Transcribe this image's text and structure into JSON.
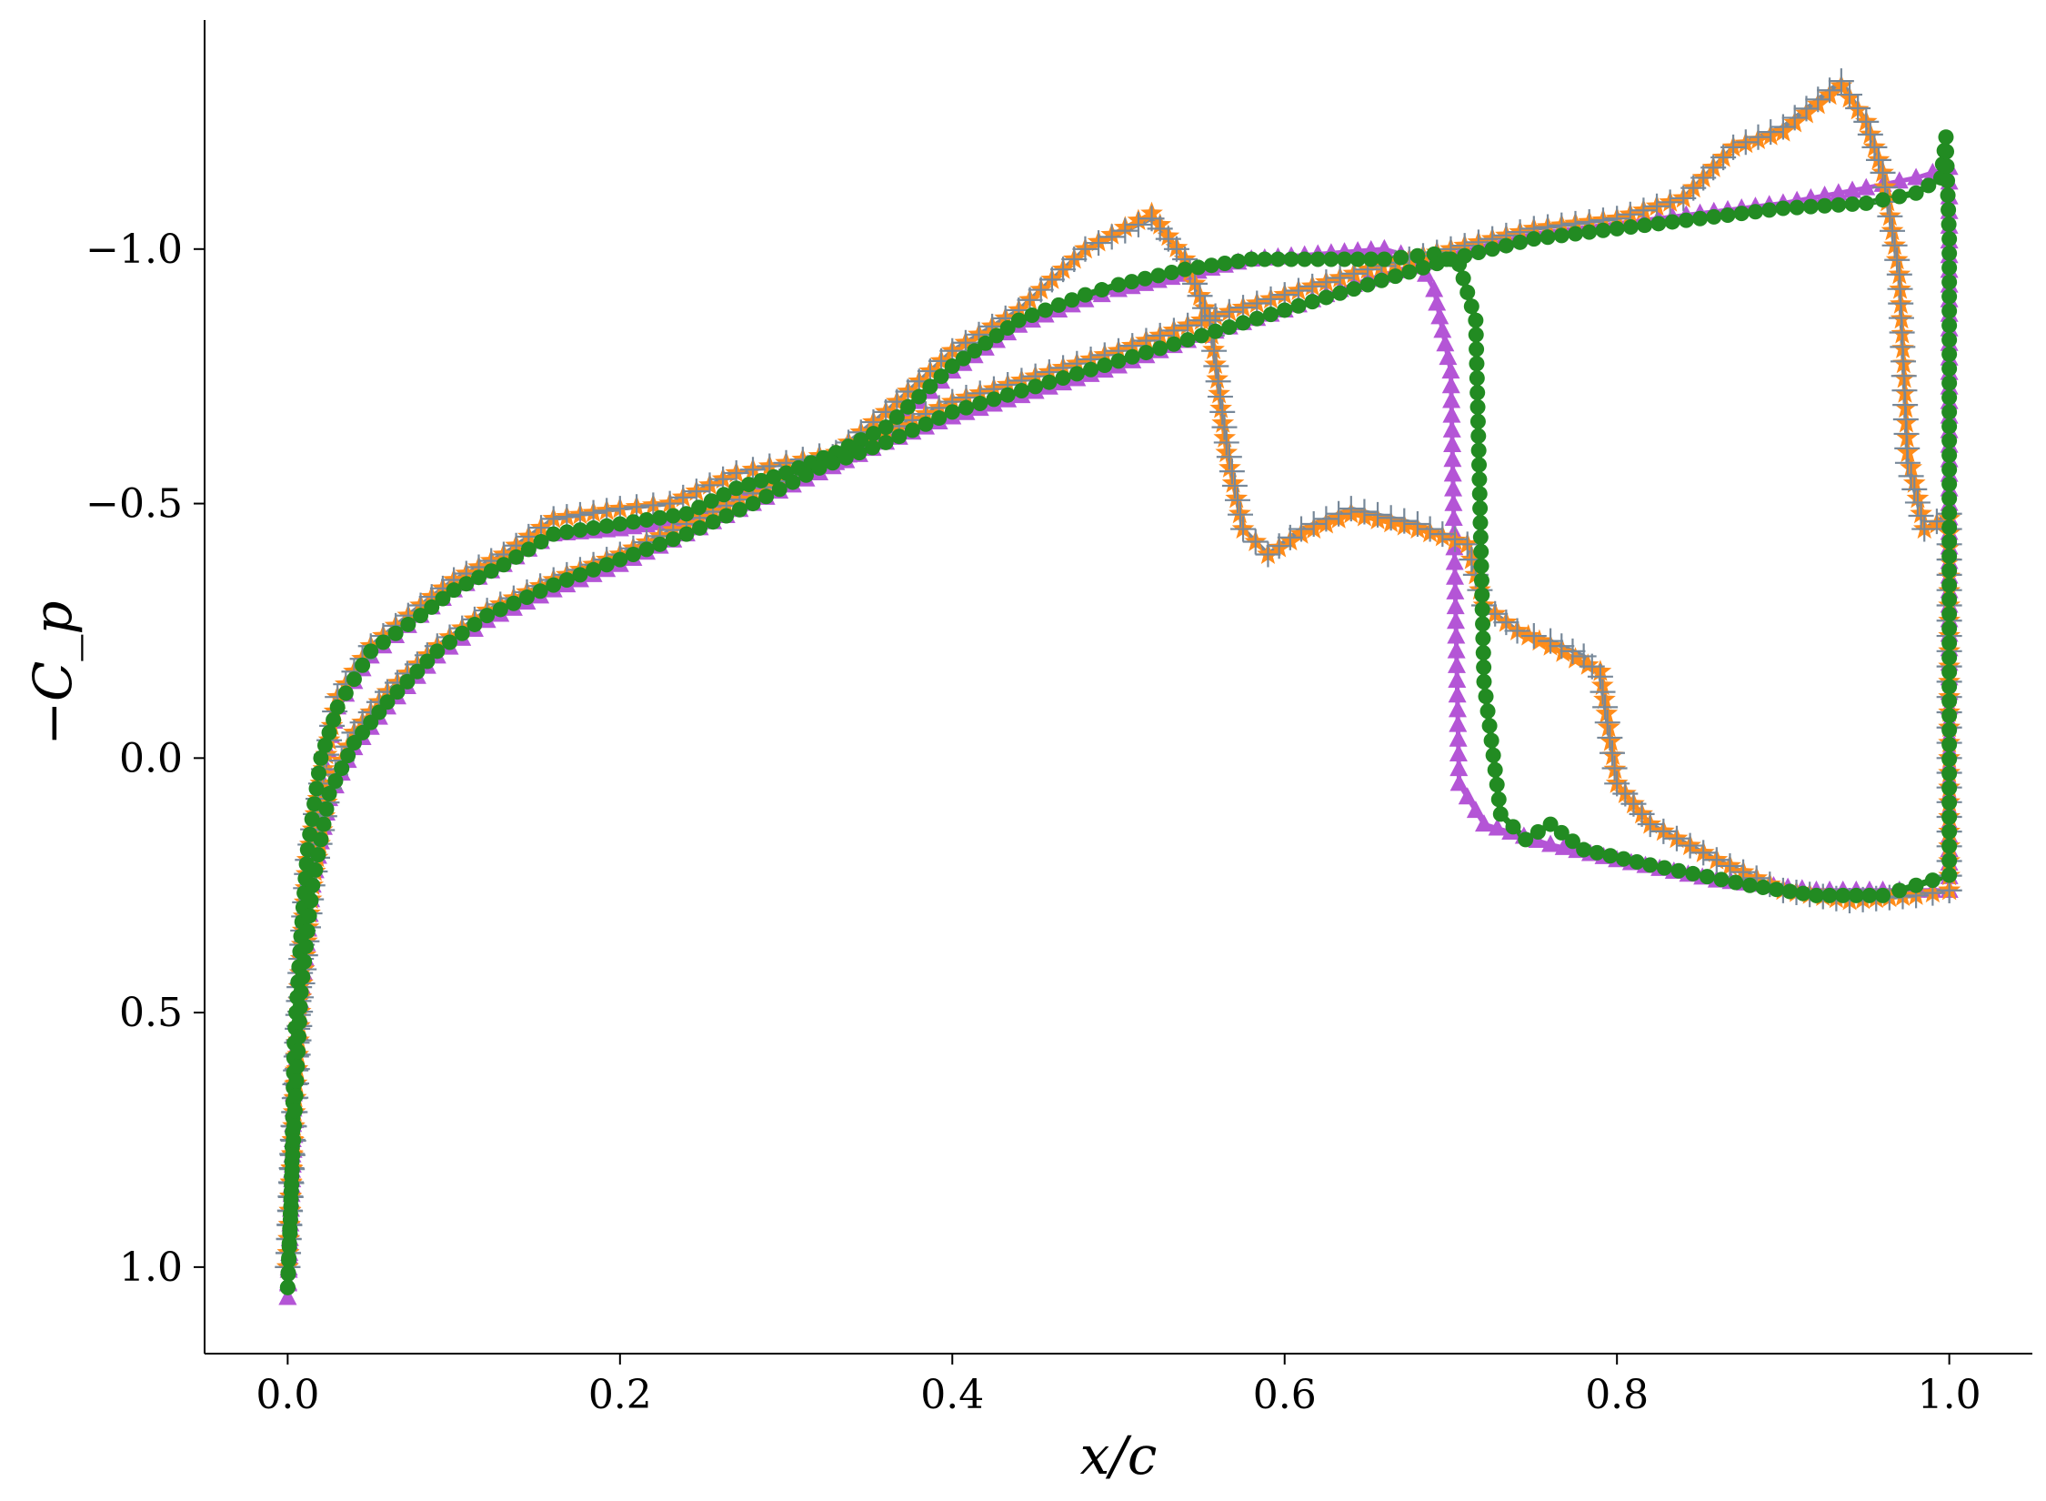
{
  "chart_data": {
    "type": "line",
    "title": "",
    "xlabel": "x/c",
    "ylabel": "−C_p",
    "xlim": [
      -0.05,
      1.05
    ],
    "ylim": [
      1.17,
      -1.45
    ],
    "y_inverted": true,
    "x_ticks": [
      "0.0",
      "0.2",
      "0.4",
      "0.6",
      "0.8",
      "1.0"
    ],
    "x_tick_values": [
      0.0,
      0.2,
      0.4,
      0.6,
      0.8,
      1.0
    ],
    "y_ticks": [
      "−1.0",
      "−0.5",
      "0.0",
      "0.5",
      "1.0"
    ],
    "y_tick_values": [
      -1.0,
      -0.5,
      0.0,
      0.5,
      1.0
    ],
    "grid": false,
    "legend": "none",
    "series": [
      {
        "color": "#b455d6",
        "marker": "triangle",
        "upper": [
          [
            0.0,
            1.06
          ],
          [
            0.002,
            0.9
          ],
          [
            0.004,
            0.6
          ],
          [
            0.008,
            0.38
          ],
          [
            0.012,
            0.22
          ],
          [
            0.02,
            0.04
          ],
          [
            0.03,
            -0.1
          ],
          [
            0.05,
            -0.2
          ],
          [
            0.08,
            -0.28
          ],
          [
            0.1,
            -0.33
          ],
          [
            0.13,
            -0.38
          ],
          [
            0.16,
            -0.44
          ],
          [
            0.2,
            -0.45
          ],
          [
            0.24,
            -0.47
          ],
          [
            0.27,
            -0.52
          ],
          [
            0.3,
            -0.55
          ],
          [
            0.33,
            -0.58
          ],
          [
            0.36,
            -0.64
          ],
          [
            0.4,
            -0.76
          ],
          [
            0.44,
            -0.85
          ],
          [
            0.48,
            -0.9
          ],
          [
            0.5,
            -0.92
          ],
          [
            0.54,
            -0.95
          ],
          [
            0.58,
            -0.98
          ],
          [
            0.62,
            -0.99
          ],
          [
            0.66,
            -1.0
          ],
          [
            0.68,
            -0.98
          ],
          [
            0.69,
            -0.92
          ],
          [
            0.7,
            -0.76
          ],
          [
            0.705,
            0.05
          ],
          [
            0.72,
            0.13
          ],
          [
            0.76,
            0.17
          ],
          [
            0.8,
            0.2
          ],
          [
            0.86,
            0.24
          ],
          [
            0.92,
            0.26
          ],
          [
            0.96,
            0.26
          ],
          [
            0.98,
            0.26
          ],
          [
            1.0,
            0.26
          ]
        ],
        "lower": [
          [
            0.0,
            1.06
          ],
          [
            0.003,
            0.8
          ],
          [
            0.008,
            0.48
          ],
          [
            0.015,
            0.25
          ],
          [
            0.025,
            0.08
          ],
          [
            0.04,
            -0.02
          ],
          [
            0.06,
            -0.1
          ],
          [
            0.09,
            -0.2
          ],
          [
            0.12,
            -0.27
          ],
          [
            0.16,
            -0.33
          ],
          [
            0.2,
            -0.38
          ],
          [
            0.24,
            -0.44
          ],
          [
            0.28,
            -0.5
          ],
          [
            0.32,
            -0.56
          ],
          [
            0.36,
            -0.62
          ],
          [
            0.4,
            -0.67
          ],
          [
            0.45,
            -0.72
          ],
          [
            0.5,
            -0.77
          ],
          [
            0.55,
            -0.83
          ],
          [
            0.6,
            -0.88
          ],
          [
            0.65,
            -0.94
          ],
          [
            0.7,
            -0.99
          ],
          [
            0.75,
            -1.03
          ],
          [
            0.8,
            -1.05
          ],
          [
            0.85,
            -1.07
          ],
          [
            0.9,
            -1.09
          ],
          [
            0.95,
            -1.12
          ],
          [
            0.98,
            -1.14
          ],
          [
            1.0,
            -1.16
          ],
          [
            1.0,
            -0.9
          ],
          [
            1.0,
            0.1
          ],
          [
            1.0,
            0.26
          ]
        ]
      },
      {
        "color": "#ff8c1a",
        "marker": "star",
        "upper": [
          [
            0.0,
            1.0
          ],
          [
            0.003,
            0.75
          ],
          [
            0.007,
            0.45
          ],
          [
            0.012,
            0.2
          ],
          [
            0.02,
            0.05
          ],
          [
            0.03,
            -0.12
          ],
          [
            0.05,
            -0.22
          ],
          [
            0.08,
            -0.3
          ],
          [
            0.1,
            -0.35
          ],
          [
            0.13,
            -0.4
          ],
          [
            0.16,
            -0.47
          ],
          [
            0.2,
            -0.49
          ],
          [
            0.23,
            -0.5
          ],
          [
            0.27,
            -0.56
          ],
          [
            0.3,
            -0.58
          ],
          [
            0.33,
            -0.6
          ],
          [
            0.36,
            -0.68
          ],
          [
            0.4,
            -0.8
          ],
          [
            0.44,
            -0.88
          ],
          [
            0.48,
            -1.0
          ],
          [
            0.52,
            -1.07
          ],
          [
            0.54,
            -0.98
          ],
          [
            0.555,
            -0.86
          ],
          [
            0.565,
            -0.6
          ],
          [
            0.575,
            -0.45
          ],
          [
            0.59,
            -0.4
          ],
          [
            0.61,
            -0.44
          ],
          [
            0.64,
            -0.48
          ],
          [
            0.68,
            -0.45
          ],
          [
            0.71,
            -0.42
          ],
          [
            0.72,
            -0.3
          ],
          [
            0.74,
            -0.25
          ],
          [
            0.76,
            -0.22
          ],
          [
            0.79,
            -0.17
          ],
          [
            0.8,
            0.05
          ],
          [
            0.82,
            0.13
          ],
          [
            0.86,
            0.2
          ],
          [
            0.9,
            0.26
          ],
          [
            0.94,
            0.28
          ],
          [
            0.98,
            0.27
          ],
          [
            1.0,
            0.26
          ]
        ],
        "lower": [
          [
            0.0,
            1.0
          ],
          [
            0.003,
            0.78
          ],
          [
            0.008,
            0.47
          ],
          [
            0.015,
            0.25
          ],
          [
            0.025,
            0.06
          ],
          [
            0.04,
            -0.05
          ],
          [
            0.06,
            -0.13
          ],
          [
            0.09,
            -0.22
          ],
          [
            0.12,
            -0.29
          ],
          [
            0.16,
            -0.35
          ],
          [
            0.2,
            -0.4
          ],
          [
            0.24,
            -0.46
          ],
          [
            0.28,
            -0.52
          ],
          [
            0.32,
            -0.58
          ],
          [
            0.36,
            -0.64
          ],
          [
            0.4,
            -0.7
          ],
          [
            0.45,
            -0.75
          ],
          [
            0.5,
            -0.8
          ],
          [
            0.55,
            -0.86
          ],
          [
            0.6,
            -0.91
          ],
          [
            0.65,
            -0.96
          ],
          [
            0.7,
            -1.0
          ],
          [
            0.75,
            -1.04
          ],
          [
            0.8,
            -1.06
          ],
          [
            0.84,
            -1.1
          ],
          [
            0.87,
            -1.2
          ],
          [
            0.9,
            -1.23
          ],
          [
            0.935,
            -1.32
          ],
          [
            0.95,
            -1.25
          ],
          [
            0.96,
            -1.15
          ],
          [
            0.97,
            -0.95
          ],
          [
            0.975,
            -0.6
          ],
          [
            0.985,
            -0.45
          ],
          [
            1.0,
            -0.47
          ],
          [
            1.0,
            -0.3
          ],
          [
            1.0,
            0.0
          ],
          [
            1.0,
            0.26
          ]
        ]
      },
      {
        "color": "#778899",
        "marker": "plus",
        "upper": [
          [
            0.0,
            1.0
          ],
          [
            0.003,
            0.75
          ],
          [
            0.007,
            0.45
          ],
          [
            0.012,
            0.2
          ],
          [
            0.02,
            0.05
          ],
          [
            0.03,
            -0.12
          ],
          [
            0.05,
            -0.22
          ],
          [
            0.08,
            -0.3
          ],
          [
            0.1,
            -0.35
          ],
          [
            0.13,
            -0.4
          ],
          [
            0.16,
            -0.47
          ],
          [
            0.2,
            -0.49
          ],
          [
            0.23,
            -0.5
          ],
          [
            0.27,
            -0.56
          ],
          [
            0.3,
            -0.58
          ],
          [
            0.33,
            -0.6
          ],
          [
            0.36,
            -0.68
          ],
          [
            0.4,
            -0.8
          ],
          [
            0.44,
            -0.88
          ],
          [
            0.48,
            -1.0
          ],
          [
            0.52,
            -1.06
          ],
          [
            0.54,
            -0.98
          ],
          [
            0.555,
            -0.86
          ],
          [
            0.565,
            -0.62
          ],
          [
            0.575,
            -0.45
          ],
          [
            0.59,
            -0.4
          ],
          [
            0.61,
            -0.45
          ],
          [
            0.64,
            -0.49
          ],
          [
            0.68,
            -0.46
          ],
          [
            0.71,
            -0.42
          ],
          [
            0.72,
            -0.3
          ],
          [
            0.74,
            -0.25
          ],
          [
            0.76,
            -0.23
          ],
          [
            0.78,
            -0.2
          ],
          [
            0.79,
            -0.16
          ],
          [
            0.8,
            0.05
          ],
          [
            0.82,
            0.13
          ],
          [
            0.86,
            0.2
          ],
          [
            0.9,
            0.26
          ],
          [
            0.94,
            0.28
          ],
          [
            0.98,
            0.27
          ],
          [
            1.0,
            0.26
          ]
        ],
        "lower": [
          [
            0.0,
            1.0
          ],
          [
            0.003,
            0.78
          ],
          [
            0.008,
            0.47
          ],
          [
            0.015,
            0.25
          ],
          [
            0.025,
            0.06
          ],
          [
            0.04,
            -0.05
          ],
          [
            0.06,
            -0.13
          ],
          [
            0.09,
            -0.22
          ],
          [
            0.12,
            -0.29
          ],
          [
            0.16,
            -0.35
          ],
          [
            0.2,
            -0.4
          ],
          [
            0.24,
            -0.46
          ],
          [
            0.28,
            -0.52
          ],
          [
            0.32,
            -0.58
          ],
          [
            0.36,
            -0.64
          ],
          [
            0.4,
            -0.7
          ],
          [
            0.45,
            -0.75
          ],
          [
            0.5,
            -0.8
          ],
          [
            0.55,
            -0.86
          ],
          [
            0.6,
            -0.91
          ],
          [
            0.65,
            -0.96
          ],
          [
            0.7,
            -1.0
          ],
          [
            0.75,
            -1.04
          ],
          [
            0.8,
            -1.06
          ],
          [
            0.84,
            -1.1
          ],
          [
            0.87,
            -1.2
          ],
          [
            0.9,
            -1.24
          ],
          [
            0.935,
            -1.33
          ],
          [
            0.95,
            -1.25
          ],
          [
            0.96,
            -1.15
          ],
          [
            0.97,
            -0.95
          ],
          [
            0.975,
            -0.58
          ],
          [
            0.985,
            -0.45
          ],
          [
            1.0,
            -0.48
          ],
          [
            1.0,
            -0.3
          ],
          [
            1.0,
            0.0
          ],
          [
            1.0,
            0.26
          ]
        ]
      },
      {
        "color": "#228b22",
        "marker": "circle",
        "upper": [
          [
            0.0,
            1.04
          ],
          [
            0.002,
            0.88
          ],
          [
            0.004,
            0.56
          ],
          [
            0.008,
            0.35
          ],
          [
            0.012,
            0.18
          ],
          [
            0.02,
            0.0
          ],
          [
            0.03,
            -0.1
          ],
          [
            0.05,
            -0.21
          ],
          [
            0.08,
            -0.28
          ],
          [
            0.1,
            -0.33
          ],
          [
            0.13,
            -0.38
          ],
          [
            0.16,
            -0.44
          ],
          [
            0.2,
            -0.46
          ],
          [
            0.24,
            -0.48
          ],
          [
            0.27,
            -0.53
          ],
          [
            0.3,
            -0.56
          ],
          [
            0.33,
            -0.6
          ],
          [
            0.36,
            -0.65
          ],
          [
            0.4,
            -0.77
          ],
          [
            0.44,
            -0.86
          ],
          [
            0.48,
            -0.91
          ],
          [
            0.5,
            -0.93
          ],
          [
            0.54,
            -0.96
          ],
          [
            0.58,
            -0.98
          ],
          [
            0.62,
            -0.98
          ],
          [
            0.66,
            -0.98
          ],
          [
            0.69,
            -0.99
          ],
          [
            0.705,
            -0.97
          ],
          [
            0.715,
            -0.86
          ],
          [
            0.72,
            -0.15
          ],
          [
            0.73,
            0.11
          ],
          [
            0.745,
            0.16
          ],
          [
            0.76,
            0.13
          ],
          [
            0.78,
            0.18
          ],
          [
            0.82,
            0.21
          ],
          [
            0.88,
            0.25
          ],
          [
            0.92,
            0.27
          ],
          [
            0.96,
            0.27
          ],
          [
            0.98,
            0.25
          ],
          [
            1.0,
            0.23
          ]
        ],
        "lower": [
          [
            0.0,
            1.04
          ],
          [
            0.003,
            0.78
          ],
          [
            0.008,
            0.46
          ],
          [
            0.015,
            0.25
          ],
          [
            0.025,
            0.07
          ],
          [
            0.04,
            -0.03
          ],
          [
            0.06,
            -0.11
          ],
          [
            0.09,
            -0.21
          ],
          [
            0.12,
            -0.28
          ],
          [
            0.16,
            -0.34
          ],
          [
            0.2,
            -0.39
          ],
          [
            0.24,
            -0.44
          ],
          [
            0.28,
            -0.5
          ],
          [
            0.32,
            -0.57
          ],
          [
            0.36,
            -0.62
          ],
          [
            0.4,
            -0.68
          ],
          [
            0.45,
            -0.73
          ],
          [
            0.5,
            -0.78
          ],
          [
            0.55,
            -0.83
          ],
          [
            0.6,
            -0.88
          ],
          [
            0.65,
            -0.93
          ],
          [
            0.7,
            -0.98
          ],
          [
            0.75,
            -1.02
          ],
          [
            0.8,
            -1.04
          ],
          [
            0.85,
            -1.06
          ],
          [
            0.9,
            -1.08
          ],
          [
            0.95,
            -1.09
          ],
          [
            0.98,
            -1.11
          ],
          [
            0.995,
            -1.14
          ],
          [
            0.998,
            -1.22
          ],
          [
            1.0,
            -1.02
          ],
          [
            1.0,
            -0.34
          ],
          [
            1.0,
            0.23
          ]
        ]
      }
    ]
  }
}
